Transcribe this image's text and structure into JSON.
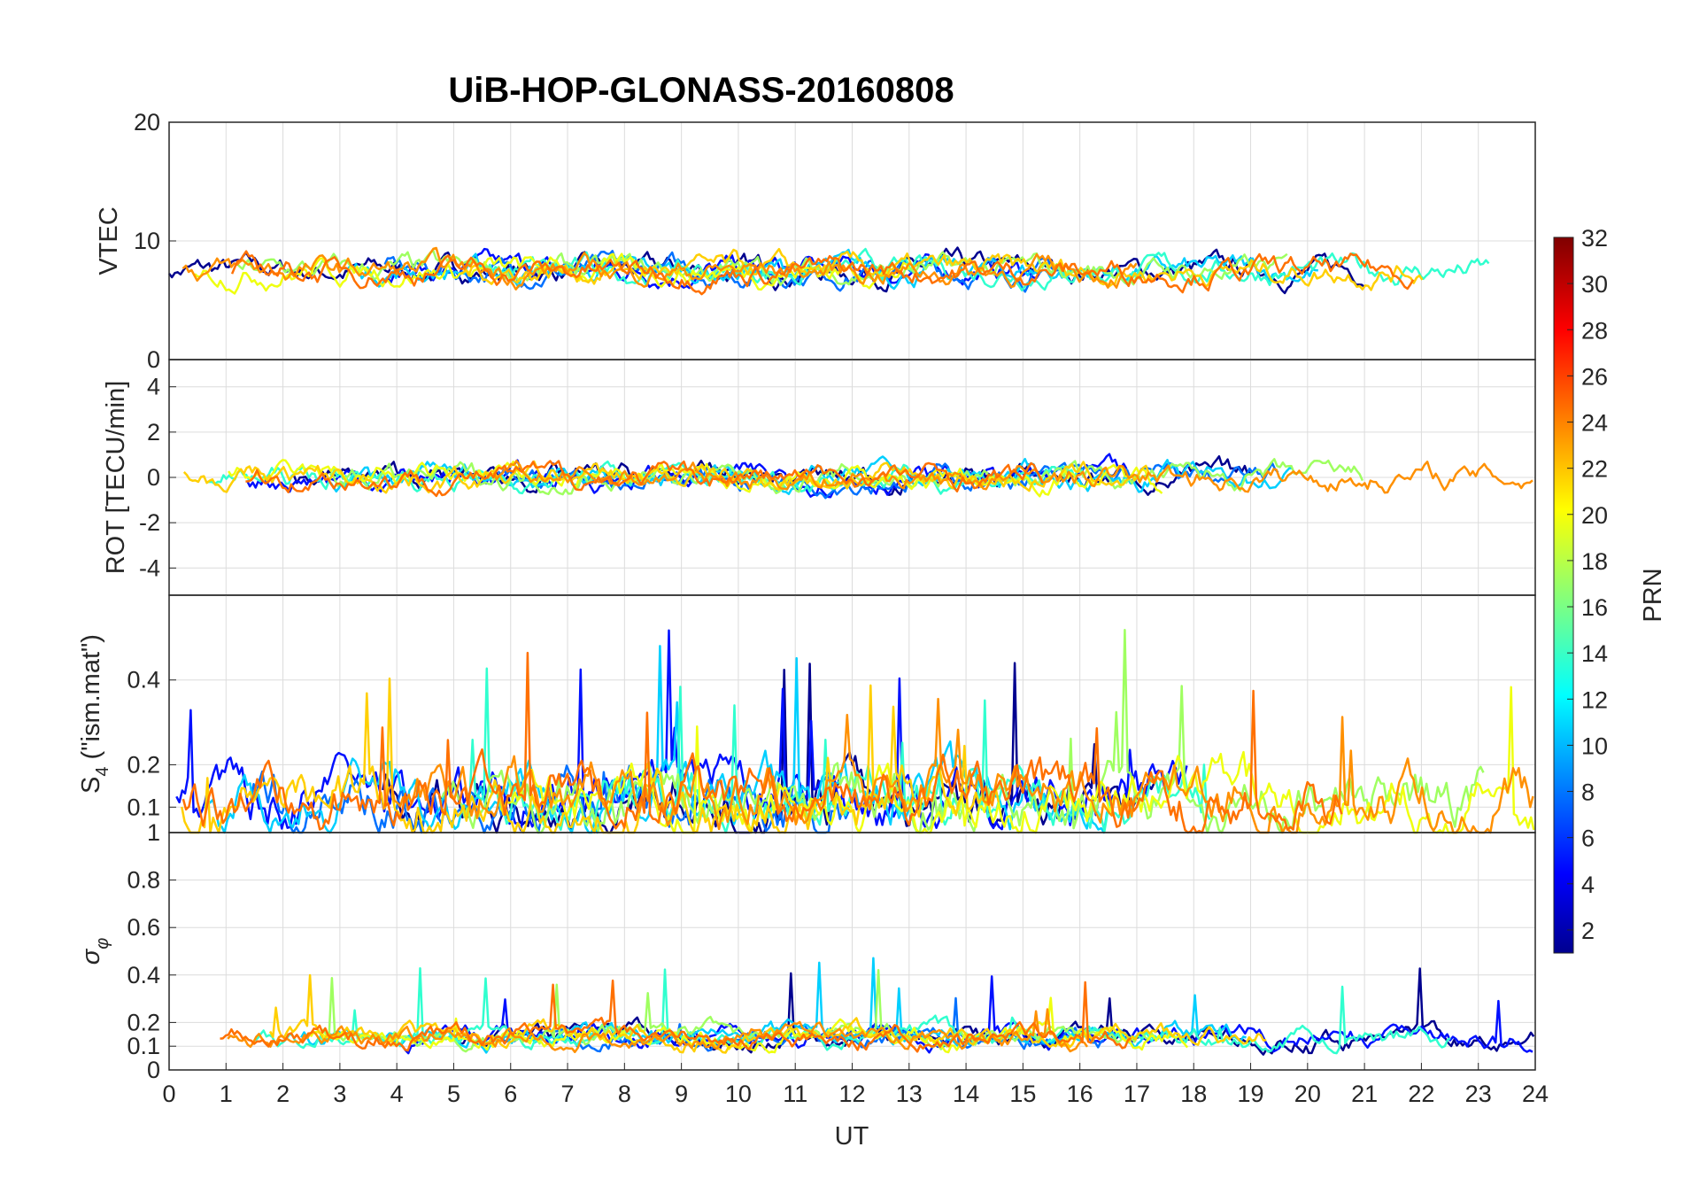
{
  "chart_data": {
    "type": "line",
    "title": "UiB-HOP-GLONASS-20160808",
    "xlabel": "UT",
    "xlim": [
      0,
      24
    ],
    "x_ticks": [
      "0",
      "1",
      "2",
      "3",
      "4",
      "5",
      "6",
      "7",
      "8",
      "9",
      "10",
      "11",
      "12",
      "13",
      "14",
      "15",
      "16",
      "17",
      "18",
      "19",
      "20",
      "21",
      "22",
      "23",
      "24"
    ],
    "series_note": "Satellites PRN 1-32 colored by PRN (jet colormap)",
    "panels": [
      {
        "id": "vtec",
        "ylabel": "VTEC",
        "ylim": [
          0,
          20
        ],
        "y_ticks": [
          {
            "v": 0,
            "t": "0"
          },
          {
            "v": 10,
            "t": "10"
          },
          {
            "v": 20,
            "t": "20"
          }
        ],
        "baseline": 7.5,
        "noise": 1.2
      },
      {
        "id": "rot",
        "ylabel": "ROT [TECU/min]",
        "ylim": [
          -5.2,
          5.2
        ],
        "y_ticks": [
          {
            "v": -4,
            "t": "-4"
          },
          {
            "v": -2,
            "t": "-2"
          },
          {
            "v": 0,
            "t": "0"
          },
          {
            "v": 2,
            "t": "2"
          },
          {
            "v": 4,
            "t": "4"
          }
        ],
        "baseline": 0,
        "noise": 0.6
      },
      {
        "id": "s4",
        "ylabel_main": "S",
        "ylabel_sub": "4",
        "ylabel_rest": " (\"ism.mat\")",
        "ylim": [
          0.04,
          0.6
        ],
        "y_ticks": [
          {
            "v": 0.1,
            "t": "0.1"
          },
          {
            "v": 0.2,
            "t": "0.2"
          },
          {
            "v": 0.4,
            "t": "0.4"
          }
        ],
        "baseline": 0.12,
        "noise": 0.08
      },
      {
        "id": "sigma",
        "ylabel_main": "σ",
        "ylabel_sub": "φ",
        "ylim": [
          0,
          1
        ],
        "y_ticks": [
          {
            "v": 0,
            "t": "0"
          },
          {
            "v": 0.1,
            "t": "0.1"
          },
          {
            "v": 0.2,
            "t": "0.2"
          },
          {
            "v": 0.4,
            "t": "0.4"
          },
          {
            "v": 0.6,
            "t": "0.6"
          },
          {
            "v": 0.8,
            "t": "0.8"
          },
          {
            "v": 1,
            "t": "1"
          }
        ],
        "baseline": 0.14,
        "noise": 0.05
      }
    ],
    "colorbar": {
      "label": "PRN",
      "range": [
        1,
        32
      ],
      "ticks": [
        "2",
        "4",
        "6",
        "8",
        "10",
        "12",
        "14",
        "16",
        "18",
        "20",
        "22",
        "24",
        "26",
        "28",
        "30",
        "32"
      ]
    },
    "series": [
      {
        "name": "PRN 2",
        "prn": 2,
        "color": "#00008f"
      },
      {
        "name": "PRN 5",
        "prn": 5,
        "color": "#0010ff"
      },
      {
        "name": "PRN 8",
        "prn": 8,
        "color": "#0070ff"
      },
      {
        "name": "PRN 11",
        "prn": 11,
        "color": "#00cfff"
      },
      {
        "name": "PRN 14",
        "prn": 14,
        "color": "#30ffcf"
      },
      {
        "name": "PRN 17",
        "prn": 17,
        "color": "#9fff60"
      },
      {
        "name": "PRN 19",
        "prn": 19,
        "color": "#efff10"
      },
      {
        "name": "PRN 21",
        "prn": 21,
        "color": "#ffcf00"
      },
      {
        "name": "PRN 23",
        "prn": 23,
        "color": "#ff9000"
      },
      {
        "name": "PRN 24",
        "prn": 24,
        "color": "#ff7000"
      }
    ]
  }
}
